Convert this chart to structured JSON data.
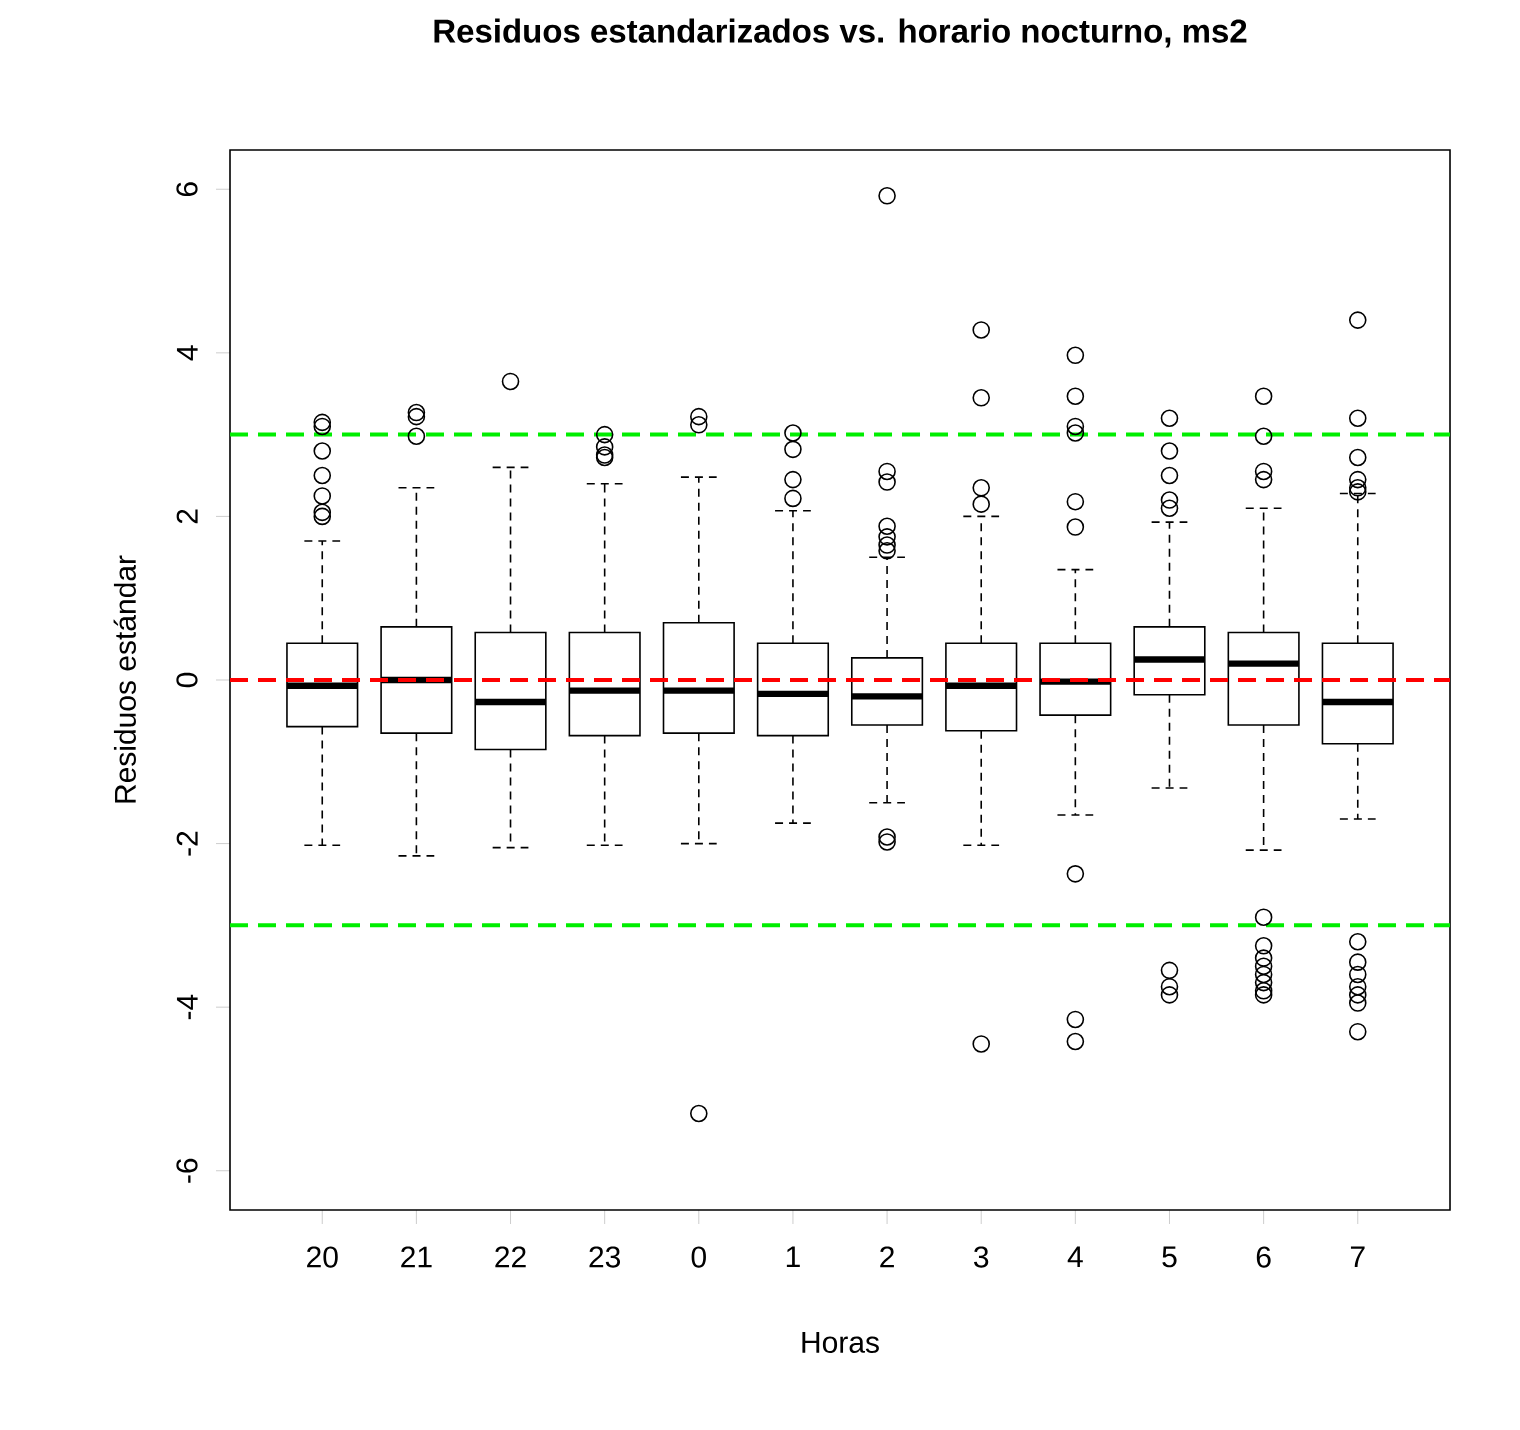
{
  "chart_data": {
    "type": "box",
    "title": "Residuos estandarizados vs. horario nocturno, ms2",
    "xlabel": "Horas",
    "ylabel": "Residuos estándar",
    "categories": [
      "20",
      "21",
      "22",
      "23",
      "0",
      "1",
      "2",
      "3",
      "4",
      "5",
      "6",
      "7"
    ],
    "boxes": [
      {
        "low": -2.02,
        "q1": -0.57,
        "median": -0.07,
        "q3": 0.45,
        "high": 1.7,
        "outliers": [
          3.15,
          3.1,
          2.8,
          2.5,
          2.25,
          2.05,
          2.0
        ]
      },
      {
        "low": -2.15,
        "q1": -0.65,
        "median": 0.0,
        "q3": 0.65,
        "high": 2.35,
        "outliers": [
          3.27,
          3.22,
          2.98
        ]
      },
      {
        "low": -2.05,
        "q1": -0.85,
        "median": -0.27,
        "q3": 0.58,
        "high": 2.6,
        "outliers": [
          3.65
        ]
      },
      {
        "low": -2.02,
        "q1": -0.68,
        "median": -0.13,
        "q3": 0.58,
        "high": 2.4,
        "outliers": [
          3.0,
          2.85,
          2.75,
          2.72
        ]
      },
      {
        "low": -2.0,
        "q1": -0.65,
        "median": -0.13,
        "q3": 0.7,
        "high": 2.48,
        "outliers": [
          3.22,
          3.12,
          -5.3
        ]
      },
      {
        "low": -1.75,
        "q1": -0.68,
        "median": -0.17,
        "q3": 0.45,
        "high": 2.07,
        "outliers": [
          3.02,
          2.82,
          2.45,
          2.22
        ]
      },
      {
        "low": -1.5,
        "q1": -0.55,
        "median": -0.2,
        "q3": 0.27,
        "high": 1.5,
        "outliers": [
          5.92,
          2.55,
          2.42,
          1.88,
          1.75,
          1.65,
          1.58,
          -1.92,
          -1.98
        ]
      },
      {
        "low": -2.02,
        "q1": -0.62,
        "median": -0.07,
        "q3": 0.45,
        "high": 2.0,
        "outliers": [
          4.28,
          3.45,
          2.35,
          2.15,
          -4.45
        ]
      },
      {
        "low": -1.65,
        "q1": -0.43,
        "median": -0.02,
        "q3": 0.45,
        "high": 1.35,
        "outliers": [
          3.97,
          3.47,
          3.1,
          3.02,
          2.18,
          1.87,
          -2.37,
          -4.15,
          -4.42
        ]
      },
      {
        "low": -1.32,
        "q1": -0.18,
        "median": 0.25,
        "q3": 0.65,
        "high": 1.93,
        "outliers": [
          3.2,
          2.8,
          2.5,
          2.2,
          2.1,
          -3.55,
          -3.75,
          -3.85
        ]
      },
      {
        "low": -2.08,
        "q1": -0.55,
        "median": 0.2,
        "q3": 0.58,
        "high": 2.1,
        "outliers": [
          3.47,
          2.98,
          2.55,
          2.45,
          -2.9,
          -3.25,
          -3.4,
          -3.5,
          -3.6,
          -3.7,
          -3.8,
          -3.85
        ]
      },
      {
        "low": -1.7,
        "q1": -0.78,
        "median": -0.27,
        "q3": 0.45,
        "high": 2.28,
        "outliers": [
          4.4,
          3.2,
          2.72,
          2.45,
          2.35,
          2.3,
          -3.2,
          -3.45,
          -3.6,
          -3.75,
          -3.85,
          -3.95,
          -4.3
        ]
      }
    ],
    "ylim": [
      -6.48,
      6.48
    ],
    "yticks": [
      -6,
      -4,
      -2,
      0,
      2,
      4,
      6
    ],
    "ref_lines": [
      {
        "axis": "y",
        "value": 3,
        "color": "#00ee00",
        "line_style": "dashed"
      },
      {
        "axis": "y",
        "value": -3,
        "color": "#00ee00",
        "line_style": "dashed"
      },
      {
        "axis": "y",
        "value": 0,
        "color": "#ff0000",
        "line_style": "dashed"
      }
    ]
  }
}
